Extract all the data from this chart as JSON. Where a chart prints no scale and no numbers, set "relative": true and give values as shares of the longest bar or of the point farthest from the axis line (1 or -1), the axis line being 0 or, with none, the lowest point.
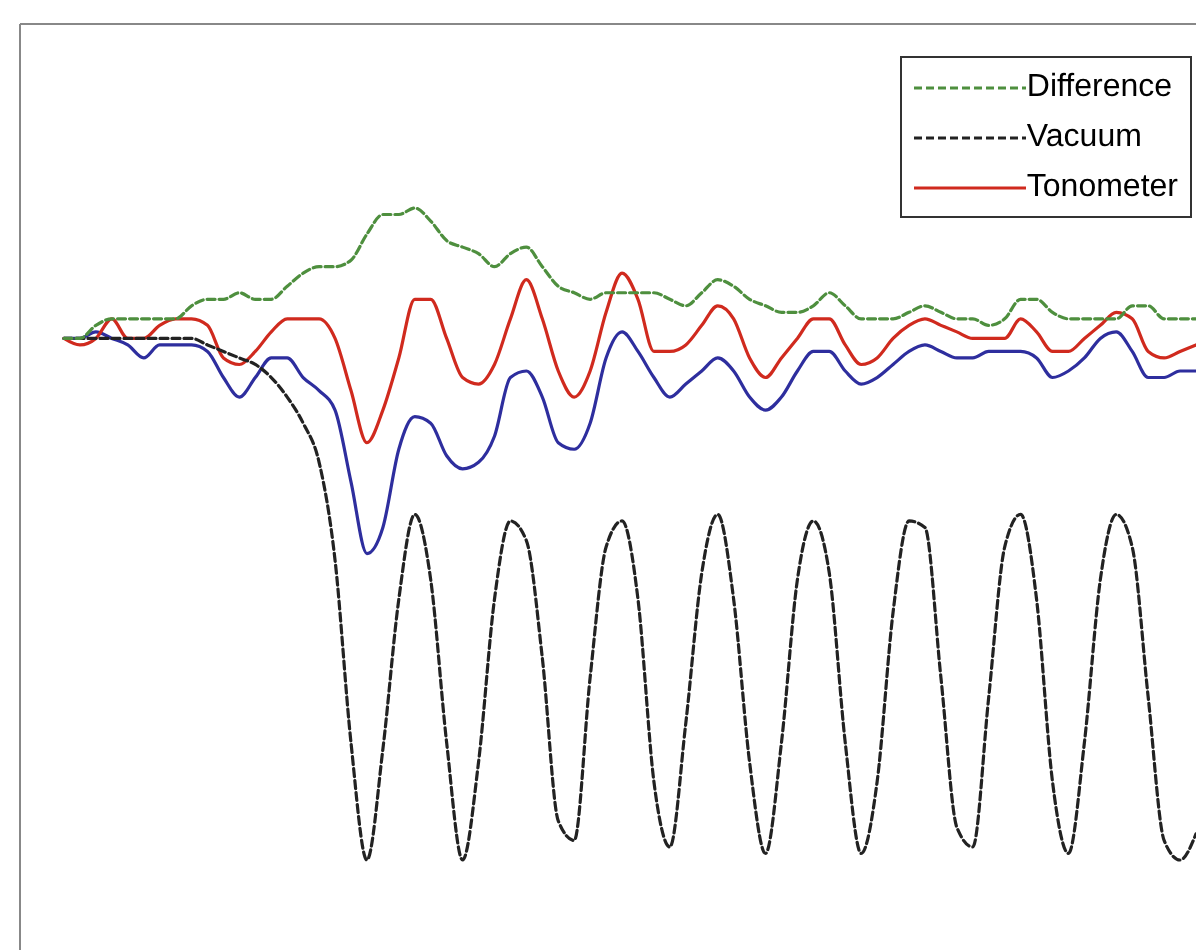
{
  "chart_data": {
    "type": "line",
    "relative": true,
    "legend": "top right",
    "marker": "none",
    "categories": [
      null,
      null,
      null,
      null,
      null,
      null,
      null,
      null,
      null,
      null,
      null,
      null,
      null,
      null,
      null,
      null,
      null,
      null,
      null,
      null,
      null,
      null,
      null,
      null,
      null,
      null,
      null,
      null,
      null,
      null,
      null,
      null,
      null,
      null,
      null,
      null,
      null,
      null,
      null,
      null,
      null,
      null,
      null,
      null,
      null,
      null,
      null,
      null,
      null,
      null,
      null,
      null,
      null,
      null,
      null,
      null,
      null,
      null,
      null,
      null,
      null,
      null,
      null,
      null,
      null,
      null,
      null,
      null,
      null,
      null,
      null,
      null
    ],
    "series": [
      {
        "name": "Difference",
        "color": "#4e8f3e",
        "line_style": "dashed",
        "values": [
          0.8,
          0.8,
          0.82,
          0.83,
          0.83,
          0.83,
          0.83,
          0.83,
          0.85,
          0.86,
          0.86,
          0.87,
          0.86,
          0.86,
          0.88,
          0.9,
          0.91,
          0.91,
          0.92,
          0.96,
          0.99,
          0.99,
          1.0,
          0.98,
          0.95,
          0.94,
          0.93,
          0.91,
          0.93,
          0.94,
          0.91,
          0.88,
          0.87,
          0.86,
          0.87,
          0.87,
          0.87,
          0.87,
          0.86,
          0.85,
          0.87,
          0.89,
          0.88,
          0.86,
          0.85,
          0.84,
          0.84,
          0.85,
          0.87,
          0.85,
          0.83,
          0.83,
          0.83,
          0.84,
          0.85,
          0.84,
          0.83,
          0.83,
          0.82,
          0.83,
          0.86,
          0.86,
          0.84,
          0.83,
          0.83,
          0.83,
          0.83,
          0.85,
          0.85,
          0.83,
          0.83,
          0.83
        ]
      },
      {
        "name": "Vacuum",
        "color": "#222222",
        "line_style": "dashed",
        "values": [
          0.8,
          0.8,
          0.8,
          0.8,
          0.8,
          0.8,
          0.8,
          0.8,
          0.8,
          0.79,
          0.78,
          0.77,
          0.76,
          0.74,
          0.71,
          0.67,
          0.61,
          0.46,
          0.18,
          0,
          0.17,
          0.4,
          0.53,
          0.43,
          0.18,
          0,
          0.15,
          0.4,
          0.52,
          0.49,
          0.31,
          0.06,
          0.03,
          0.28,
          0.48,
          0.52,
          0.4,
          0.12,
          0.02,
          0.21,
          0.44,
          0.53,
          0.4,
          0.15,
          0.01,
          0.18,
          0.43,
          0.52,
          0.44,
          0.18,
          0.01,
          0.12,
          0.38,
          0.52,
          0.51,
          0.28,
          0.05,
          0.02,
          0.25,
          0.48,
          0.53,
          0.4,
          0.12,
          0.01,
          0.18,
          0.43,
          0.53,
          0.48,
          0.25,
          0.03,
          0,
          0.04
        ]
      },
      {
        "name": "Tonometer",
        "color": "#d02a1e",
        "line_style": "solid",
        "values": [
          0.8,
          0.79,
          0.8,
          0.83,
          0.8,
          0.8,
          0.82,
          0.83,
          0.83,
          0.82,
          0.77,
          0.76,
          0.78,
          0.81,
          0.83,
          0.83,
          0.83,
          0.8,
          0.72,
          0.64,
          0.69,
          0.77,
          0.86,
          0.86,
          0.8,
          0.74,
          0.73,
          0.76,
          0.83,
          0.89,
          0.83,
          0.75,
          0.71,
          0.75,
          0.84,
          0.9,
          0.86,
          0.78,
          0.78,
          0.79,
          0.82,
          0.85,
          0.83,
          0.77,
          0.74,
          0.77,
          0.8,
          0.83,
          0.83,
          0.79,
          0.76,
          0.77,
          0.8,
          0.82,
          0.83,
          0.82,
          0.81,
          0.8,
          0.8,
          0.8,
          0.83,
          0.81,
          0.78,
          0.78,
          0.8,
          0.82,
          0.84,
          0.83,
          0.78,
          0.77,
          0.78,
          0.79
        ]
      },
      {
        "color": "#2e2e9e",
        "line_style": "solid",
        "values": [
          0.8,
          0.8,
          0.81,
          0.8,
          0.79,
          0.77,
          0.79,
          0.79,
          0.79,
          0.78,
          0.74,
          0.71,
          0.74,
          0.77,
          0.77,
          0.74,
          0.72,
          0.69,
          0.58,
          0.47,
          0.51,
          0.63,
          0.68,
          0.67,
          0.62,
          0.6,
          0.61,
          0.65,
          0.74,
          0.75,
          0.71,
          0.64,
          0.63,
          0.67,
          0.77,
          0.81,
          0.78,
          0.74,
          0.71,
          0.73,
          0.75,
          0.77,
          0.75,
          0.71,
          0.69,
          0.71,
          0.75,
          0.78,
          0.78,
          0.75,
          0.73,
          0.74,
          0.76,
          0.78,
          0.79,
          0.78,
          0.77,
          0.77,
          0.78,
          0.78,
          0.78,
          0.77,
          0.74,
          0.75,
          0.77,
          0.8,
          0.81,
          0.78,
          0.74,
          0.74,
          0.75,
          0.75
        ]
      }
    ]
  }
}
